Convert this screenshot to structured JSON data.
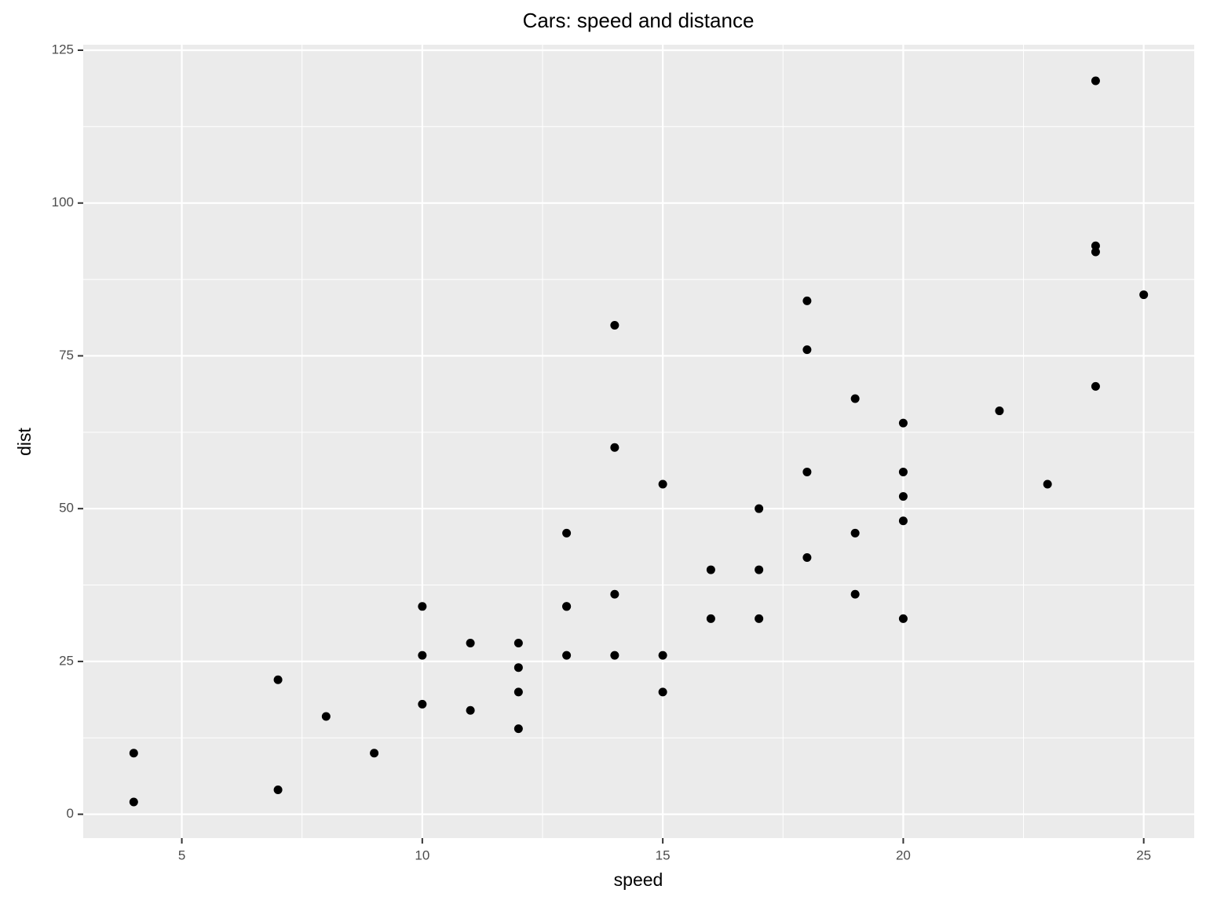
{
  "chart_data": {
    "type": "scatter",
    "title": "Cars: speed and distance",
    "x_label": "speed",
    "y_label": "dist",
    "x": [
      4,
      4,
      7,
      7,
      8,
      9,
      10,
      10,
      10,
      11,
      11,
      12,
      12,
      12,
      12,
      13,
      13,
      13,
      13,
      14,
      14,
      14,
      14,
      15,
      15,
      15,
      16,
      16,
      17,
      17,
      17,
      18,
      18,
      18,
      18,
      19,
      19,
      19,
      20,
      20,
      20,
      20,
      20,
      22,
      23,
      24,
      24,
      24,
      24,
      25
    ],
    "series": [
      {
        "values": [
          2,
          10,
          4,
          22,
          16,
          10,
          18,
          26,
          34,
          17,
          28,
          14,
          20,
          24,
          28,
          26,
          34,
          34,
          46,
          26,
          36,
          60,
          80,
          20,
          26,
          54,
          32,
          40,
          32,
          40,
          50,
          42,
          56,
          76,
          84,
          36,
          46,
          68,
          32,
          48,
          52,
          56,
          64,
          66,
          54,
          70,
          92,
          93,
          120,
          85
        ],
        "color": "#000000"
      }
    ],
    "xlim": [
      2.95,
      26.05
    ],
    "ylim": [
      -3.9,
      125.9
    ],
    "xticks": [
      5,
      10,
      15,
      20,
      25
    ],
    "yticks": [
      0,
      25,
      50,
      75,
      100,
      125
    ],
    "grid": true
  }
}
